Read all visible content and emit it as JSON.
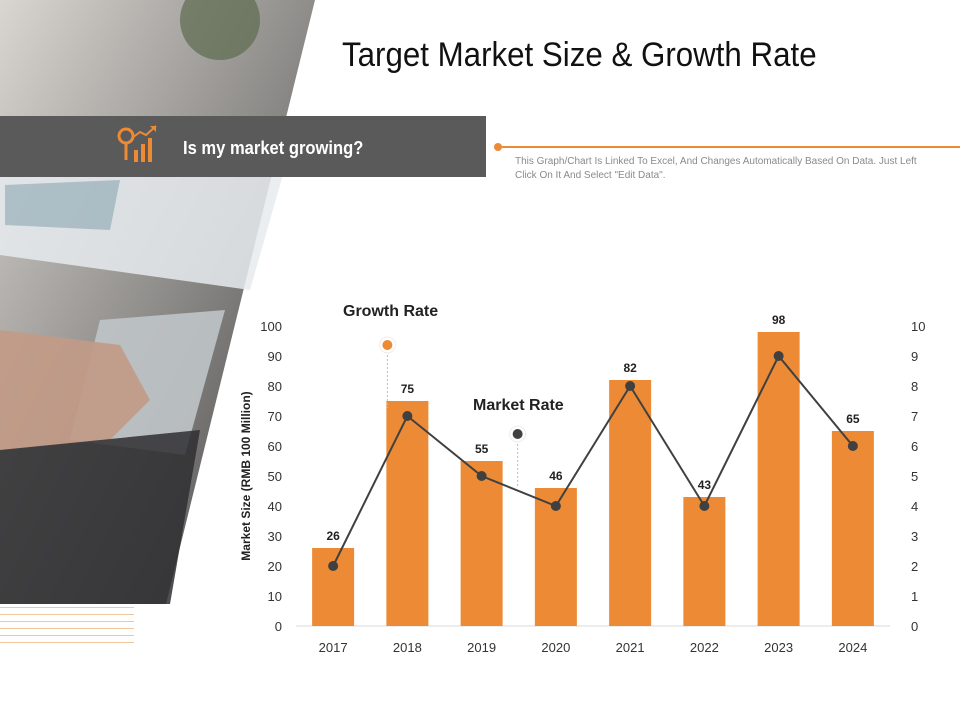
{
  "slide": {
    "title": "Target Market Size & Growth Rate",
    "banner_text": "Is my market growing?",
    "note": "This Graph/Chart Is Linked To Excel, And Changes Automatically  Based On Data. Just Left Click On It And Select \"Edit Data\"."
  },
  "colors": {
    "accent": "#ed8a35",
    "banner": "#5a5a5a",
    "line": "#404040"
  },
  "chart_data": {
    "type": "bar",
    "categories": [
      "2017",
      "2018",
      "2019",
      "2020",
      "2021",
      "2022",
      "2023",
      "2024"
    ],
    "series": [
      {
        "name": "Market Size",
        "axis": "left",
        "values": [
          26,
          75,
          55,
          46,
          82,
          43,
          98,
          65
        ]
      },
      {
        "name": "Growth Rate",
        "axis": "right",
        "type": "line",
        "values": [
          2,
          7,
          5,
          4,
          8,
          4,
          9,
          6
        ]
      }
    ],
    "ylabel": "Market Size  (RMB 100 Million)",
    "ylim": [
      0,
      100
    ],
    "y_ticks": [
      "0",
      "10",
      "20",
      "30",
      "40",
      "50",
      "60",
      "70",
      "80",
      "90",
      "100"
    ],
    "y2lim": [
      0,
      10
    ],
    "y2_ticks": [
      "0",
      "1",
      "2",
      "3",
      "4",
      "5",
      "6",
      "7",
      "8",
      "9",
      "10"
    ],
    "annotations": [
      "Growth Rate",
      "Market Rate"
    ]
  }
}
